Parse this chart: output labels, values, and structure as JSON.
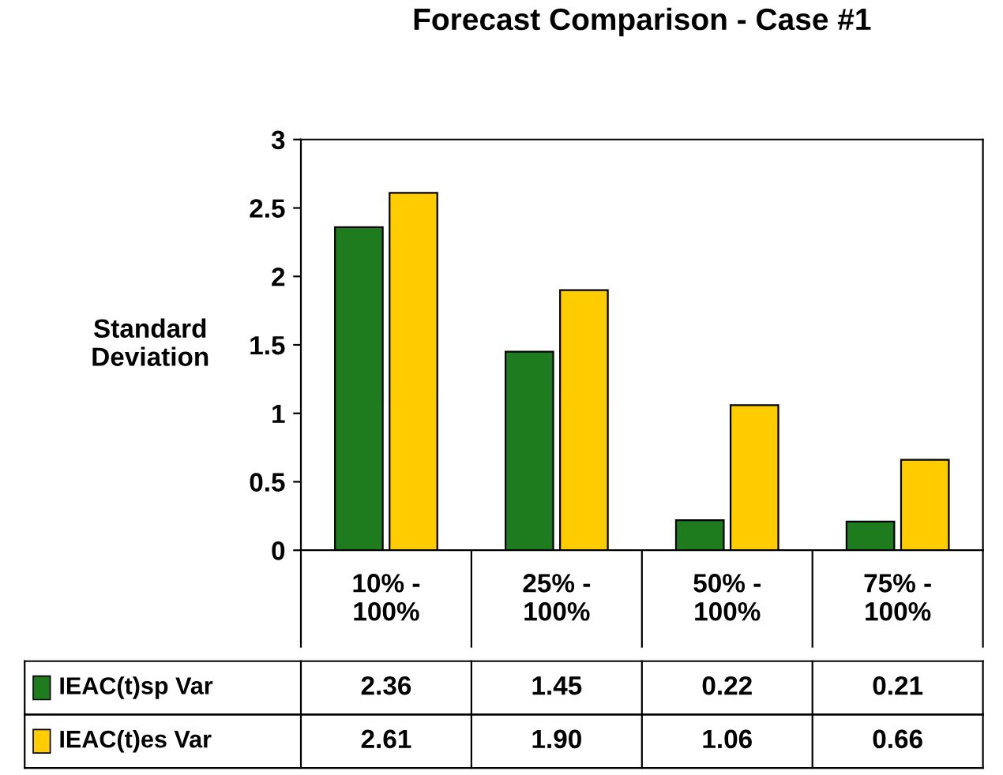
{
  "chart_data": {
    "type": "bar",
    "title": "Forecast Comparison - Case #1",
    "ylabel": "Standard\nDeviation",
    "categories": [
      "10% -\n100%",
      "25% -\n100%",
      "50% -\n100%",
      "75% -\n100%"
    ],
    "series": [
      {
        "name": "IEAC(t)sp Var",
        "color": "#1e7b1e",
        "values": [
          2.36,
          1.45,
          0.22,
          0.21
        ],
        "value_labels": [
          "2.36",
          "1.45",
          "0.22",
          "0.21"
        ]
      },
      {
        "name": "IEAC(t)es Var",
        "color": "#ffcc00",
        "values": [
          2.61,
          1.9,
          1.06,
          0.66
        ],
        "value_labels": [
          "2.61",
          "1.90",
          "1.06",
          "0.66"
        ]
      }
    ],
    "ylim": [
      0,
      3
    ],
    "yticks": [
      0,
      0.5,
      1,
      1.5,
      2,
      2.5,
      3
    ],
    "grid": false,
    "legend": "bottom left"
  }
}
